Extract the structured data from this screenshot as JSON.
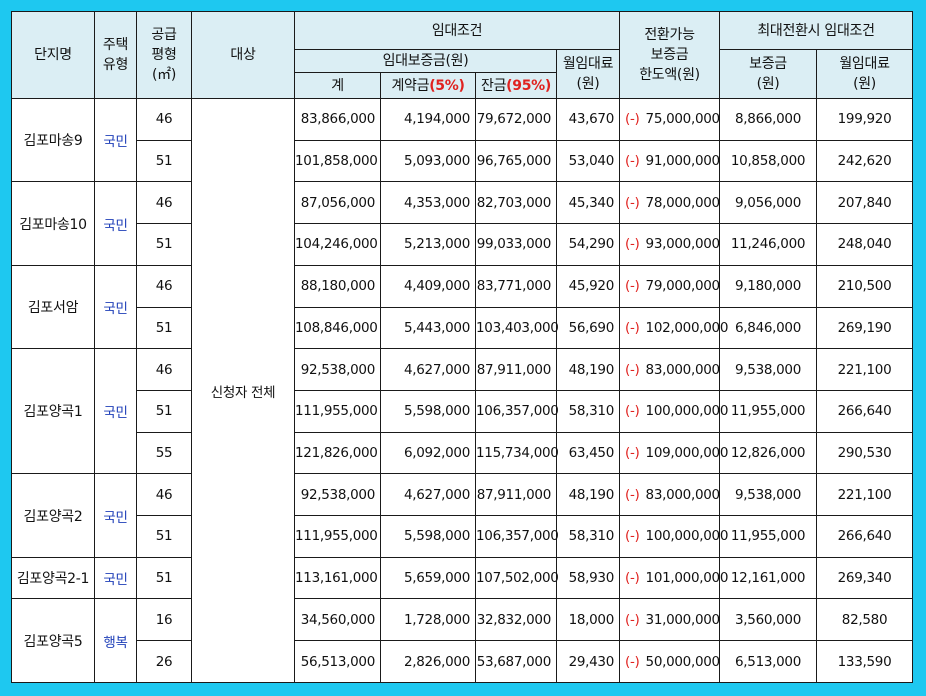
{
  "headers": {
    "complex_name": "단지명",
    "housing_type_l1": "주택",
    "housing_type_l2": "유형",
    "supply_area_l1": "공급",
    "supply_area_l2": "평형",
    "supply_area_l3": "(㎡)",
    "target": "대상",
    "lease_terms": "임대조건",
    "deposit_group": "임대보증금(원)",
    "monthly_rent_l1": "월임대료",
    "monthly_rent_l2": "(원)",
    "conversion_l1": "전환가능",
    "conversion_l2": "보증금",
    "conversion_l3": "한도액(원)",
    "max_conversion": "최대전환시  임대조건",
    "max_deposit_l1": "보증금",
    "max_deposit_l2": "(원)",
    "max_rent_l1": "월임대료",
    "max_rent_l2": "(원)",
    "total": "계",
    "contract_label": "계약금",
    "contract_pct": "(5%)",
    "balance_label": "잔금",
    "balance_pct": "(95%)"
  },
  "target_value": "신청자 전체",
  "minus_sign": "(-)",
  "complexes": [
    {
      "name": "김포마송9",
      "type": "국민",
      "rows": [
        {
          "area": "46",
          "total": "83,866,000",
          "contract": "4,194,000",
          "balance": "79,672,000",
          "rent": "43,670",
          "conv": "75,000,000",
          "max_deposit": "8,866,000",
          "max_rent": "199,920"
        },
        {
          "area": "51",
          "total": "101,858,000",
          "contract": "5,093,000",
          "balance": "96,765,000",
          "rent": "53,040",
          "conv": "91,000,000",
          "max_deposit": "10,858,000",
          "max_rent": "242,620"
        }
      ]
    },
    {
      "name": "김포마송10",
      "type": "국민",
      "rows": [
        {
          "area": "46",
          "total": "87,056,000",
          "contract": "4,353,000",
          "balance": "82,703,000",
          "rent": "45,340",
          "conv": "78,000,000",
          "max_deposit": "9,056,000",
          "max_rent": "207,840"
        },
        {
          "area": "51",
          "total": "104,246,000",
          "contract": "5,213,000",
          "balance": "99,033,000",
          "rent": "54,290",
          "conv": "93,000,000",
          "max_deposit": "11,246,000",
          "max_rent": "248,040"
        }
      ]
    },
    {
      "name": "김포서암",
      "type": "국민",
      "rows": [
        {
          "area": "46",
          "total": "88,180,000",
          "contract": "4,409,000",
          "balance": "83,771,000",
          "rent": "45,920",
          "conv": "79,000,000",
          "max_deposit": "9,180,000",
          "max_rent": "210,500"
        },
        {
          "area": "51",
          "total": "108,846,000",
          "contract": "5,443,000",
          "balance": "103,403,000",
          "rent": "56,690",
          "conv": "102,000,000",
          "max_deposit": "6,846,000",
          "max_rent": "269,190"
        }
      ]
    },
    {
      "name": "김포양곡1",
      "type": "국민",
      "rows": [
        {
          "area": "46",
          "total": "92,538,000",
          "contract": "4,627,000",
          "balance": "87,911,000",
          "rent": "48,190",
          "conv": "83,000,000",
          "max_deposit": "9,538,000",
          "max_rent": "221,100"
        },
        {
          "area": "51",
          "total": "111,955,000",
          "contract": "5,598,000",
          "balance": "106,357,000",
          "rent": "58,310",
          "conv": "100,000,000",
          "max_deposit": "11,955,000",
          "max_rent": "266,640"
        },
        {
          "area": "55",
          "total": "121,826,000",
          "contract": "6,092,000",
          "balance": "115,734,000",
          "rent": "63,450",
          "conv": "109,000,000",
          "max_deposit": "12,826,000",
          "max_rent": "290,530"
        }
      ]
    },
    {
      "name": "김포양곡2",
      "type": "국민",
      "rows": [
        {
          "area": "46",
          "total": "92,538,000",
          "contract": "4,627,000",
          "balance": "87,911,000",
          "rent": "48,190",
          "conv": "83,000,000",
          "max_deposit": "9,538,000",
          "max_rent": "221,100"
        },
        {
          "area": "51",
          "total": "111,955,000",
          "contract": "5,598,000",
          "balance": "106,357,000",
          "rent": "58,310",
          "conv": "100,000,000",
          "max_deposit": "11,955,000",
          "max_rent": "266,640"
        }
      ]
    },
    {
      "name": "김포양곡2-1",
      "type": "국민",
      "rows": [
        {
          "area": "51",
          "total": "113,161,000",
          "contract": "5,659,000",
          "balance": "107,502,000",
          "rent": "58,930",
          "conv": "101,000,000",
          "max_deposit": "12,161,000",
          "max_rent": "269,340"
        }
      ]
    },
    {
      "name": "김포양곡5",
      "type": "행복",
      "rows": [
        {
          "area": "16",
          "total": "34,560,000",
          "contract": "1,728,000",
          "balance": "32,832,000",
          "rent": "18,000",
          "conv": "31,000,000",
          "max_deposit": "3,560,000",
          "max_rent": "82,580"
        },
        {
          "area": "26",
          "total": "56,513,000",
          "contract": "2,826,000",
          "balance": "53,687,000",
          "rent": "29,430",
          "conv": "50,000,000",
          "max_deposit": "6,513,000",
          "max_rent": "133,590"
        }
      ]
    }
  ]
}
